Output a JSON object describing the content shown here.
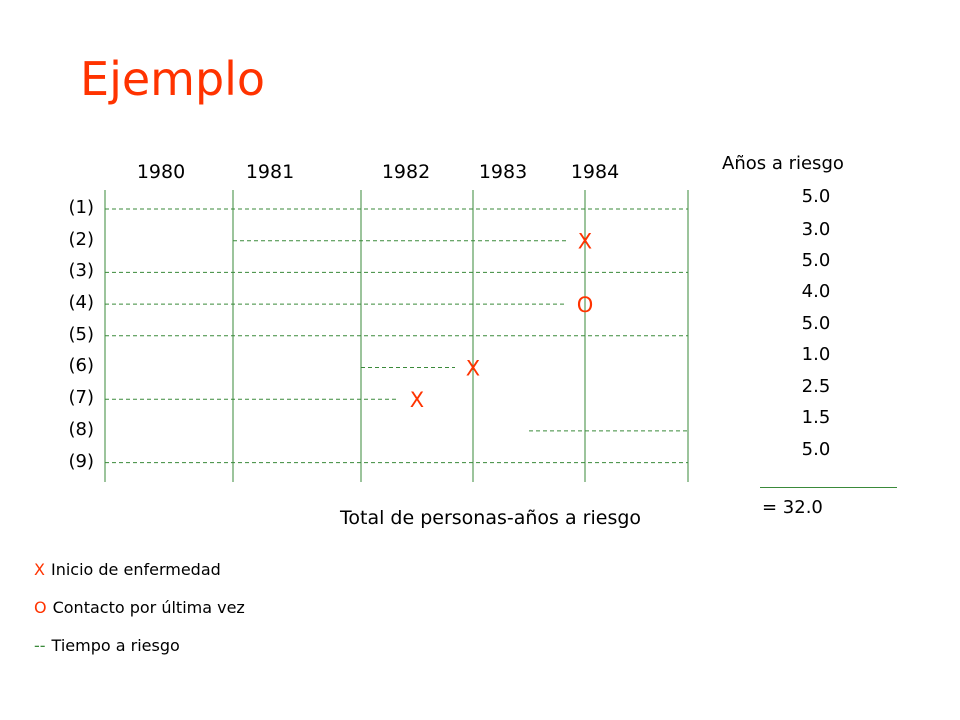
{
  "title": "Ejemplo",
  "colors": {
    "accent": "#ff3300",
    "line": "#3a8a3a",
    "text": "#000000"
  },
  "years": [
    "1980",
    "1981",
    "1982",
    "1983",
    "1984"
  ],
  "rows": [
    {
      "label": "(1)",
      "start": 1980,
      "end": 1985,
      "event": null
    },
    {
      "label": "(2)",
      "start": 1981,
      "end": 1984,
      "event": "X"
    },
    {
      "label": "(3)",
      "start": 1980,
      "end": 1985,
      "event": null
    },
    {
      "label": "(4)",
      "start": 1980,
      "end": 1984,
      "event": "O"
    },
    {
      "label": "(5)",
      "start": 1980,
      "end": 1985,
      "event": null
    },
    {
      "label": "(6)",
      "start": 1982,
      "end": 1983,
      "event": "X"
    },
    {
      "label": "(7)",
      "start": 1980,
      "end": 1982.5,
      "event": "X"
    },
    {
      "label": "(8)",
      "start": 1983.5,
      "end": 1985,
      "event": null
    },
    {
      "label": "(9)",
      "start": 1980,
      "end": 1985,
      "event": null
    }
  ],
  "years_at_risk": {
    "header": "Años a riesgo",
    "values": [
      "5.0",
      "3.0",
      "5.0",
      "4.0",
      "5.0",
      "1.0",
      "2.5",
      "1.5",
      "5.0"
    ],
    "total": "= 32.0"
  },
  "total_label": "Total de personas-años a riesgo",
  "legend": [
    {
      "marker": "X",
      "text": "Inicio de enfermedad"
    },
    {
      "marker": "O",
      "text": "Contacto por última vez"
    },
    {
      "marker": "--",
      "text": "Tiempo a riesgo"
    }
  ]
}
